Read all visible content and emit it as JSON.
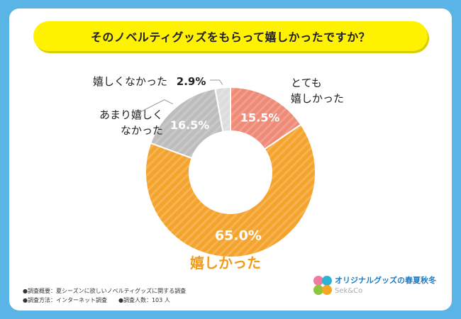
{
  "title": "そのノベルティグッズをもらって嬉しかったですか？",
  "chart_data": {
    "type": "pie",
    "categories": [
      "とても嬉しかった",
      "嬉しかった",
      "あまり嬉しくなかった",
      "嬉しくなかった"
    ],
    "values": [
      15.5,
      65.0,
      16.5,
      2.9
    ],
    "value_labels": [
      "15.5%",
      "65.0%",
      "16.5%",
      "2.9%"
    ],
    "label_texts": [
      "とても\n嬉しかった",
      "嬉しかった",
      "あまり嬉しく\nなかった",
      "嬉しくなかった"
    ],
    "colors": [
      "#ee8a76",
      "#f4a32c",
      "#bdbdbd",
      "#dcdcdc"
    ]
  },
  "notes": {
    "line1": "●調査概要：夏シーズンに欲しいノベルティグッズに関する調査",
    "line2": "●調査方法：インターネット調査　　●調査人数：103 人"
  },
  "logo": {
    "text1": "オリジナルグッズの春夏秋冬",
    "text2": "Sek&Co"
  }
}
